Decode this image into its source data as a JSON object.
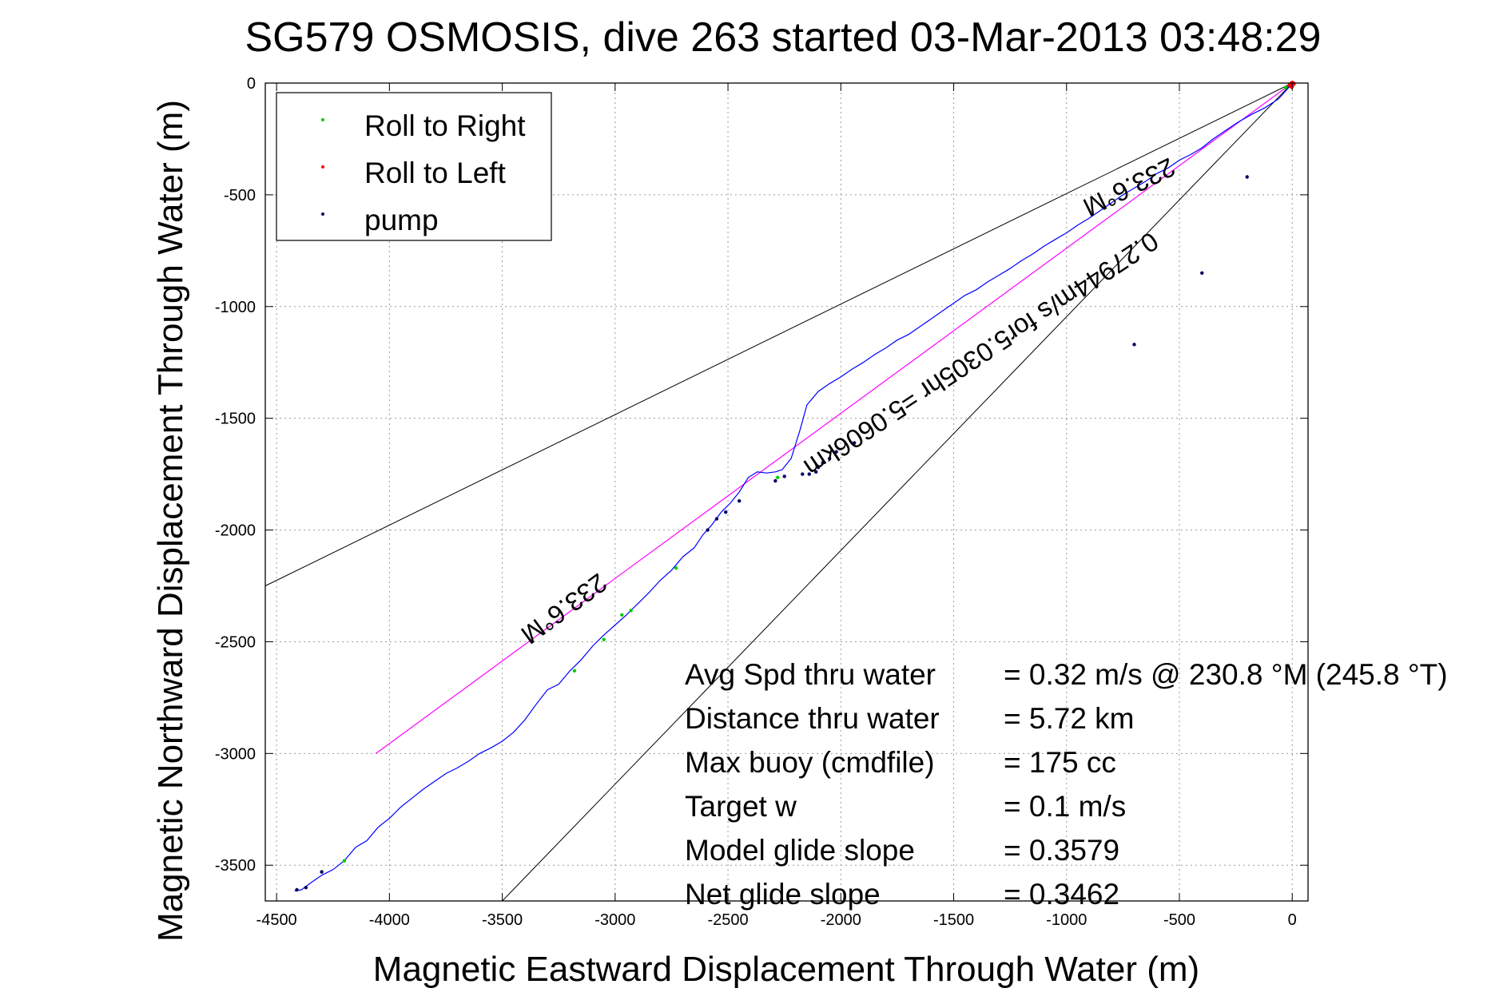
{
  "chart_data": {
    "type": "scatter",
    "title": "SG579 OSMOSIS, dive 263 started 03-Mar-2013 03:48:29",
    "xlabel": "Magnetic Eastward Displacement Through Water (m)",
    "ylabel": "Magnetic Northward Displacement Through Water (m)",
    "xlim": [
      -4550,
      70
    ],
    "ylim": [
      -3660,
      0
    ],
    "xticks": [
      -4500,
      -4000,
      -3500,
      -3000,
      -2500,
      -2000,
      -1500,
      -1000,
      -500,
      0
    ],
    "yticks": [
      0,
      -500,
      -1000,
      -1500,
      -2000,
      -2500,
      -3000,
      -3500
    ],
    "xtick_labels": [
      "-4500",
      "-4000",
      "-3500",
      "-3000",
      "-2500",
      "-2000",
      "-1500",
      "-1000",
      "-500",
      "0"
    ],
    "ytick_labels": [
      "0",
      "-500",
      "-1000",
      "-1500",
      "-2000",
      "-2500",
      "-3000",
      "-3500"
    ],
    "grid": true,
    "legend_position": "top-left",
    "legend": [
      {
        "label": "Roll to Right",
        "color": "#00cc00"
      },
      {
        "label": "Roll to Left",
        "color": "#ff0000"
      },
      {
        "label": "pump",
        "color": "#000066"
      }
    ],
    "colors": {
      "track": "#0000ff",
      "heading_line": "#ff00ff",
      "cone_lines": "#000000"
    },
    "track": {
      "x": [
        0,
        -20,
        -60,
        -120,
        -180,
        -240,
        -300,
        -350,
        -400,
        -450,
        -500,
        -550,
        -600,
        -650,
        -700,
        -750,
        -800,
        -850,
        -900,
        -950,
        -1000,
        -1050,
        -1100,
        -1150,
        -1200,
        -1250,
        -1300,
        -1350,
        -1400,
        -1450,
        -1500,
        -1550,
        -1600,
        -1650,
        -1700,
        -1750,
        -1800,
        -1850,
        -1900,
        -1950,
        -2000,
        -2050,
        -2100,
        -2150,
        -2180,
        -2220,
        -2260,
        -2290,
        -2330,
        -2370,
        -2410,
        -2450,
        -2490,
        -2530,
        -2570,
        -2610,
        -2650,
        -2700,
        -2750,
        -2800,
        -2850,
        -2900,
        -2950,
        -3000,
        -3050,
        -3100,
        -3150,
        -3200,
        -3250,
        -3300,
        -3350,
        -3400,
        -3450,
        -3500,
        -3550,
        -3600,
        -3650,
        -3700,
        -3750,
        -3800,
        -3850,
        -3900,
        -3950,
        -4000,
        -4050,
        -4100,
        -4150,
        -4200,
        -4250,
        -4300,
        -4350,
        -4390,
        -4420
      ],
      "y": [
        0,
        -25,
        -70,
        -110,
        -140,
        -175,
        -215,
        -250,
        -290,
        -320,
        -345,
        -380,
        -405,
        -440,
        -470,
        -500,
        -535,
        -570,
        -605,
        -635,
        -670,
        -700,
        -730,
        -765,
        -795,
        -830,
        -860,
        -890,
        -925,
        -950,
        -985,
        -1020,
        -1055,
        -1090,
        -1125,
        -1150,
        -1185,
        -1215,
        -1250,
        -1280,
        -1315,
        -1345,
        -1380,
        -1440,
        -1550,
        -1680,
        -1730,
        -1740,
        -1745,
        -1740,
        -1765,
        -1830,
        -1880,
        -1920,
        -1975,
        -2020,
        -2080,
        -2120,
        -2180,
        -2225,
        -2280,
        -2330,
        -2380,
        -2425,
        -2470,
        -2520,
        -2580,
        -2630,
        -2690,
        -2715,
        -2780,
        -2850,
        -2905,
        -2945,
        -2975,
        -3000,
        -3035,
        -3065,
        -3090,
        -3125,
        -3160,
        -3200,
        -3240,
        -3290,
        -3330,
        -3390,
        -3420,
        -3480,
        -3520,
        -3545,
        -3580,
        -3610,
        -3615
      ]
    },
    "roll_right_points": {
      "x": [
        -4200,
        -2970,
        -2930,
        -2730,
        -3180,
        -3050,
        -4300,
        -2280,
        -30,
        0
      ],
      "y": [
        -3480,
        -2380,
        -2360,
        -2170,
        -2630,
        -2490,
        -3530,
        -1765,
        -20,
        -5
      ]
    },
    "roll_left_points": {
      "x": [
        0,
        -10,
        -3,
        5
      ],
      "y": [
        0,
        -8,
        -15,
        -3
      ]
    },
    "pump_points": {
      "x": [
        -4410,
        -4370,
        -4300,
        -2590,
        -2550,
        -2510,
        -2450,
        -2290,
        -2250,
        -2170,
        -2140,
        -2110,
        -2100,
        -2080,
        -2050,
        -2020,
        -1940,
        -700,
        -400,
        -200
      ],
      "y": [
        -3610,
        -3600,
        -3530,
        -2000,
        -1950,
        -1920,
        -1870,
        -1780,
        -1760,
        -1750,
        -1750,
        -1740,
        -1720,
        -1700,
        -1680,
        -1650,
        -1610,
        -1170,
        -850,
        -420
      ],
      "color": "#000066"
    },
    "heading_line": {
      "x": [
        0,
        -4060
      ],
      "y": [
        0,
        -3000
      ]
    },
    "cone_lines": [
      {
        "x": [
          0,
          -4550
        ],
        "y": [
          0,
          -2250
        ]
      },
      {
        "x": [
          0,
          -3500
        ],
        "y": [
          0,
          -3660
        ]
      }
    ],
    "annotations": [
      {
        "text": "233.6°M",
        "x": -3250,
        "y": -2320
      },
      {
        "text": "233.6°M",
        "x": -740,
        "y": -430
      },
      {
        "text": "0.27944m/s for5.0305hr =5.0606km",
        "x": -1400,
        "y": -1180
      }
    ],
    "stats": [
      {
        "label": "Avg Spd thru water",
        "value": "=  0.32 m/s @ 230.8  °M (245.8  °T)"
      },
      {
        "label": "Distance thru water",
        "value": "=  5.72 km"
      },
      {
        "label": "Max buoy (cmdfile)",
        "value": "= 175 cc"
      },
      {
        "label": "Target w",
        "value": "= 0.1 m/s"
      },
      {
        "label": "Model glide slope",
        "value": "= 0.3579"
      },
      {
        "label": "Net glide slope",
        "value": "= 0.3462"
      }
    ]
  }
}
